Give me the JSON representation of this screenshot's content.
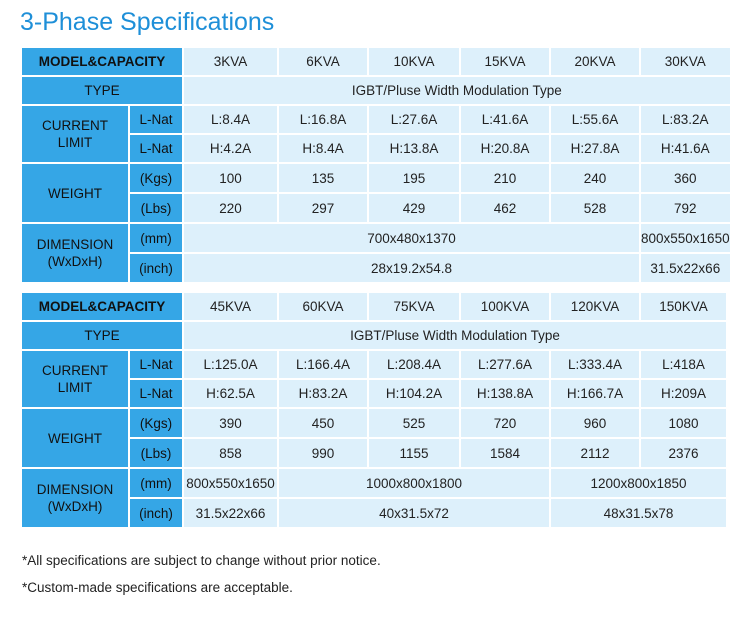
{
  "title": "3-Phase Specifications",
  "labels": {
    "model": "MODEL&CAPACITY",
    "type": "TYPE",
    "current_limit": "CURRENT LIMIT",
    "weight": "WEIGHT",
    "dimension": "DIMENSION (WxDxH)",
    "lnat": "L-Nat",
    "kgs": "(Kgs)",
    "lbs": "(Lbs)",
    "mm": "(mm)",
    "inch": "(inch)"
  },
  "table1": {
    "models": [
      "3KVA",
      "6KVA",
      "10KVA",
      "15KVA",
      "20KVA",
      "30KVA"
    ],
    "type": "IGBT/Pluse Width Modulation Type",
    "current_l": [
      "L:8.4A",
      "L:16.8A",
      "L:27.6A",
      "L:41.6A",
      "L:55.6A",
      "L:83.2A"
    ],
    "current_h": [
      "H:4.2A",
      "H:8.4A",
      "H:13.8A",
      "H:20.8A",
      "H:27.8A",
      "H:41.6A"
    ],
    "kgs": [
      "100",
      "135",
      "195",
      "210",
      "240",
      "360"
    ],
    "lbs": [
      "220",
      "297",
      "429",
      "462",
      "528",
      "792"
    ],
    "mm": [
      "700x480x1370",
      "800x550x1650"
    ],
    "inch": [
      "28x19.2x54.8",
      "31.5x22x66"
    ]
  },
  "table2": {
    "models": [
      "45KVA",
      "60KVA",
      "75KVA",
      "100KVA",
      "120KVA",
      "150KVA"
    ],
    "type": "IGBT/Pluse Width Modulation Type",
    "current_l": [
      "L:125.0A",
      "L:166.4A",
      "L:208.4A",
      "L:277.6A",
      "L:333.4A",
      "L:418A"
    ],
    "current_h": [
      "H:62.5A",
      "H:83.2A",
      "H:104.2A",
      "H:138.8A",
      "H:166.7A",
      "H:209A"
    ],
    "kgs": [
      "390",
      "450",
      "525",
      "720",
      "960",
      "1080"
    ],
    "lbs": [
      "858",
      "990",
      "1155",
      "1584",
      "2112",
      "2376"
    ],
    "mm": [
      "800x550x1650",
      "1000x800x1800",
      "1200x800x1850"
    ],
    "inch": [
      "31.5x22x66",
      "40x31.5x72",
      "48x31.5x78"
    ]
  },
  "notes": [
    "*All specifications are subject to change without prior notice.",
    "*Custom-made specifications are acceptable."
  ]
}
